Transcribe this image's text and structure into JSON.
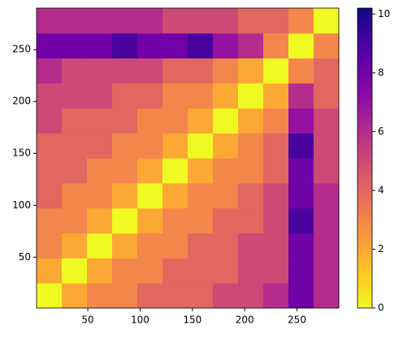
{
  "chart_data": {
    "type": "heatmap",
    "colormap": "plasma_r",
    "xlim": [
      1,
      290
    ],
    "ylim": [
      1,
      290
    ],
    "xticks": [
      50,
      100,
      150,
      200,
      250
    ],
    "yticks": [
      50,
      100,
      150,
      200,
      250
    ],
    "clim": [
      0,
      10.2
    ],
    "cticks": [
      0,
      2,
      4,
      6,
      8,
      10
    ],
    "z": [
      [
        0,
        2,
        3,
        3,
        4,
        4,
        4,
        5,
        5,
        6,
        8,
        6
      ],
      [
        2,
        0,
        2,
        3,
        3,
        4,
        4,
        4,
        5,
        5,
        8,
        6
      ],
      [
        3,
        2,
        0,
        2,
        3,
        3,
        4,
        4,
        5,
        5,
        8,
        6
      ],
      [
        3,
        3,
        2,
        0,
        2,
        3,
        3,
        4,
        4,
        5,
        9,
        6
      ],
      [
        4,
        3,
        3,
        2,
        0,
        2,
        3,
        3,
        4,
        5,
        8,
        6
      ],
      [
        4,
        4,
        3,
        3,
        2,
        0,
        2,
        3,
        3,
        4,
        8,
        5
      ],
      [
        4,
        4,
        4,
        3,
        3,
        2,
        0,
        2,
        3,
        4,
        9,
        5
      ],
      [
        5,
        4,
        4,
        4,
        3,
        3,
        2,
        0,
        2,
        3,
        7,
        5
      ],
      [
        5,
        5,
        5,
        4,
        4,
        3,
        3,
        2,
        0,
        2,
        6,
        4
      ],
      [
        6,
        5,
        5,
        5,
        5,
        4,
        4,
        3,
        2,
        0,
        3,
        4
      ],
      [
        8,
        8,
        8,
        9,
        8,
        8,
        9,
        7,
        6,
        3,
        0,
        3
      ],
      [
        6,
        6,
        6,
        6,
        6,
        5,
        5,
        5,
        4,
        4,
        3,
        0
      ]
    ]
  }
}
